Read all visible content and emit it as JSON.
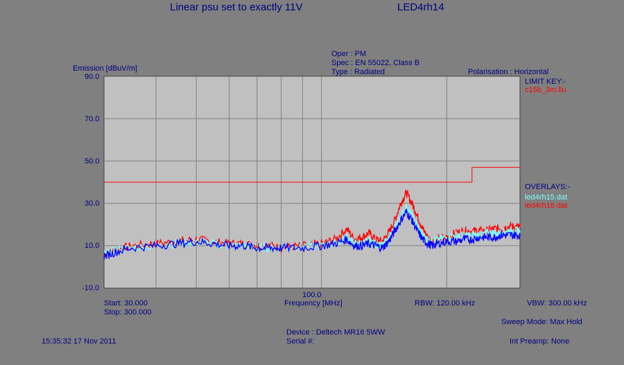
{
  "header": {
    "title": "Linear psu set to exactly 11V",
    "run_name": "LED4rh14",
    "oper": "Oper : PM",
    "spec": "Spec : EN 55022, Class B",
    "type": "Type : Radiated",
    "polarisation": "Polarisation : Horizontal"
  },
  "legend": {
    "limit_key_title": "LIMIT KEY:-",
    "limit_file": "c15b_3m.llu",
    "overlays_title": "OVERLAYS:-",
    "overlay_1": "led4rh15.dat",
    "overlay_2": "led4rh16.dat"
  },
  "footer": {
    "start": "Start: 30.000",
    "stop": "Stop: 300.000",
    "frequency_label": "Frequency [MHz]",
    "rbw": "RBW: 120.00 kHz",
    "vbw": "VBW: 300.00 kHz",
    "sweep_mode": "Sweep Mode: Max Hold",
    "device": "Device : Deltech MR16 5WW",
    "serial": "Serial #:",
    "int_preamp": "Int Preamp: None",
    "timestamp": "15:35:32 17 Nov 2011"
  },
  "colors": {
    "background": "#808080",
    "plot_bg": "#C0C0C0",
    "label_text": "#000080",
    "limit": "#FF0000",
    "trace_main": "#0000FF",
    "overlay_1": "#80FFFF",
    "overlay_2": "#FF0000"
  },
  "chart_data": {
    "type": "line",
    "ylabel": "Emission [dBuV/m]",
    "xlabel": "Frequency [MHz]",
    "x_scale": "log",
    "xlim": [
      30,
      300
    ],
    "ylim": [
      -10,
      90
    ],
    "y_ticks": [
      "90.0",
      "70.0",
      "50.0",
      "30.0",
      "10.0",
      "-10.0"
    ],
    "x_tick_labels": [
      {
        "x": 100,
        "label": "100.0"
      }
    ],
    "grid": true,
    "limit": {
      "name": "c15b_3m.llu",
      "points": [
        [
          30,
          40
        ],
        [
          230,
          40
        ],
        [
          230,
          47
        ],
        [
          300,
          47
        ]
      ]
    },
    "series": [
      {
        "name": "led4rh16.dat",
        "points": [
          [
            30,
            6
          ],
          [
            32,
            8
          ],
          [
            35,
            10
          ],
          [
            40,
            11
          ],
          [
            45,
            12
          ],
          [
            50,
            13
          ],
          [
            55,
            12
          ],
          [
            60,
            11
          ],
          [
            65,
            11
          ],
          [
            70,
            10
          ],
          [
            75,
            10
          ],
          [
            80,
            9
          ],
          [
            90,
            10
          ],
          [
            100,
            11
          ],
          [
            108,
            13
          ],
          [
            115,
            18
          ],
          [
            120,
            13
          ],
          [
            125,
            14
          ],
          [
            130,
            16
          ],
          [
            135,
            13
          ],
          [
            140,
            12
          ],
          [
            145,
            16
          ],
          [
            150,
            22
          ],
          [
            155,
            30
          ],
          [
            160,
            35
          ],
          [
            165,
            30
          ],
          [
            170,
            24
          ],
          [
            175,
            18
          ],
          [
            180,
            14
          ],
          [
            185,
            12
          ],
          [
            190,
            13
          ],
          [
            200,
            14
          ],
          [
            210,
            16
          ],
          [
            220,
            17
          ],
          [
            230,
            17
          ],
          [
            240,
            17
          ],
          [
            250,
            17
          ],
          [
            260,
            18
          ],
          [
            270,
            18
          ],
          [
            280,
            19
          ],
          [
            290,
            19
          ],
          [
            300,
            19
          ]
        ]
      },
      {
        "name": "led4rh15.dat",
        "points": [
          [
            30,
            6
          ],
          [
            32,
            8
          ],
          [
            35,
            9
          ],
          [
            40,
            10
          ],
          [
            45,
            11
          ],
          [
            50,
            12
          ],
          [
            55,
            11
          ],
          [
            60,
            10
          ],
          [
            65,
            10
          ],
          [
            70,
            9
          ],
          [
            75,
            9
          ],
          [
            80,
            9
          ],
          [
            90,
            10
          ],
          [
            100,
            10
          ],
          [
            108,
            11
          ],
          [
            115,
            14
          ],
          [
            120,
            11
          ],
          [
            125,
            11
          ],
          [
            130,
            12
          ],
          [
            135,
            11
          ],
          [
            140,
            10
          ],
          [
            145,
            13
          ],
          [
            150,
            18
          ],
          [
            155,
            24
          ],
          [
            160,
            28
          ],
          [
            165,
            24
          ],
          [
            170,
            19
          ],
          [
            175,
            15
          ],
          [
            180,
            13
          ],
          [
            185,
            12
          ],
          [
            190,
            13
          ],
          [
            200,
            14
          ],
          [
            210,
            15
          ],
          [
            220,
            15
          ],
          [
            230,
            15
          ],
          [
            240,
            15
          ],
          [
            250,
            16
          ],
          [
            260,
            16
          ],
          [
            270,
            16
          ],
          [
            280,
            17
          ],
          [
            290,
            17
          ],
          [
            300,
            17
          ]
        ]
      },
      {
        "name": "LED4rh14",
        "points": [
          [
            30,
            5
          ],
          [
            32,
            7
          ],
          [
            35,
            9
          ],
          [
            40,
            10
          ],
          [
            45,
            11
          ],
          [
            50,
            12
          ],
          [
            55,
            11
          ],
          [
            60,
            10
          ],
          [
            65,
            10
          ],
          [
            70,
            9
          ],
          [
            75,
            9
          ],
          [
            80,
            9
          ],
          [
            90,
            9
          ],
          [
            100,
            10
          ],
          [
            108,
            11
          ],
          [
            115,
            13
          ],
          [
            120,
            10
          ],
          [
            125,
            10
          ],
          [
            130,
            11
          ],
          [
            135,
            10
          ],
          [
            140,
            9
          ],
          [
            145,
            12
          ],
          [
            150,
            17
          ],
          [
            155,
            22
          ],
          [
            160,
            26
          ],
          [
            165,
            22
          ],
          [
            170,
            17
          ],
          [
            175,
            13
          ],
          [
            180,
            11
          ],
          [
            185,
            10
          ],
          [
            190,
            11
          ],
          [
            200,
            12
          ],
          [
            210,
            12
          ],
          [
            220,
            13
          ],
          [
            230,
            13
          ],
          [
            240,
            14
          ],
          [
            250,
            14
          ],
          [
            260,
            14
          ],
          [
            270,
            15
          ],
          [
            280,
            15
          ],
          [
            290,
            15
          ],
          [
            300,
            15
          ]
        ]
      }
    ]
  }
}
